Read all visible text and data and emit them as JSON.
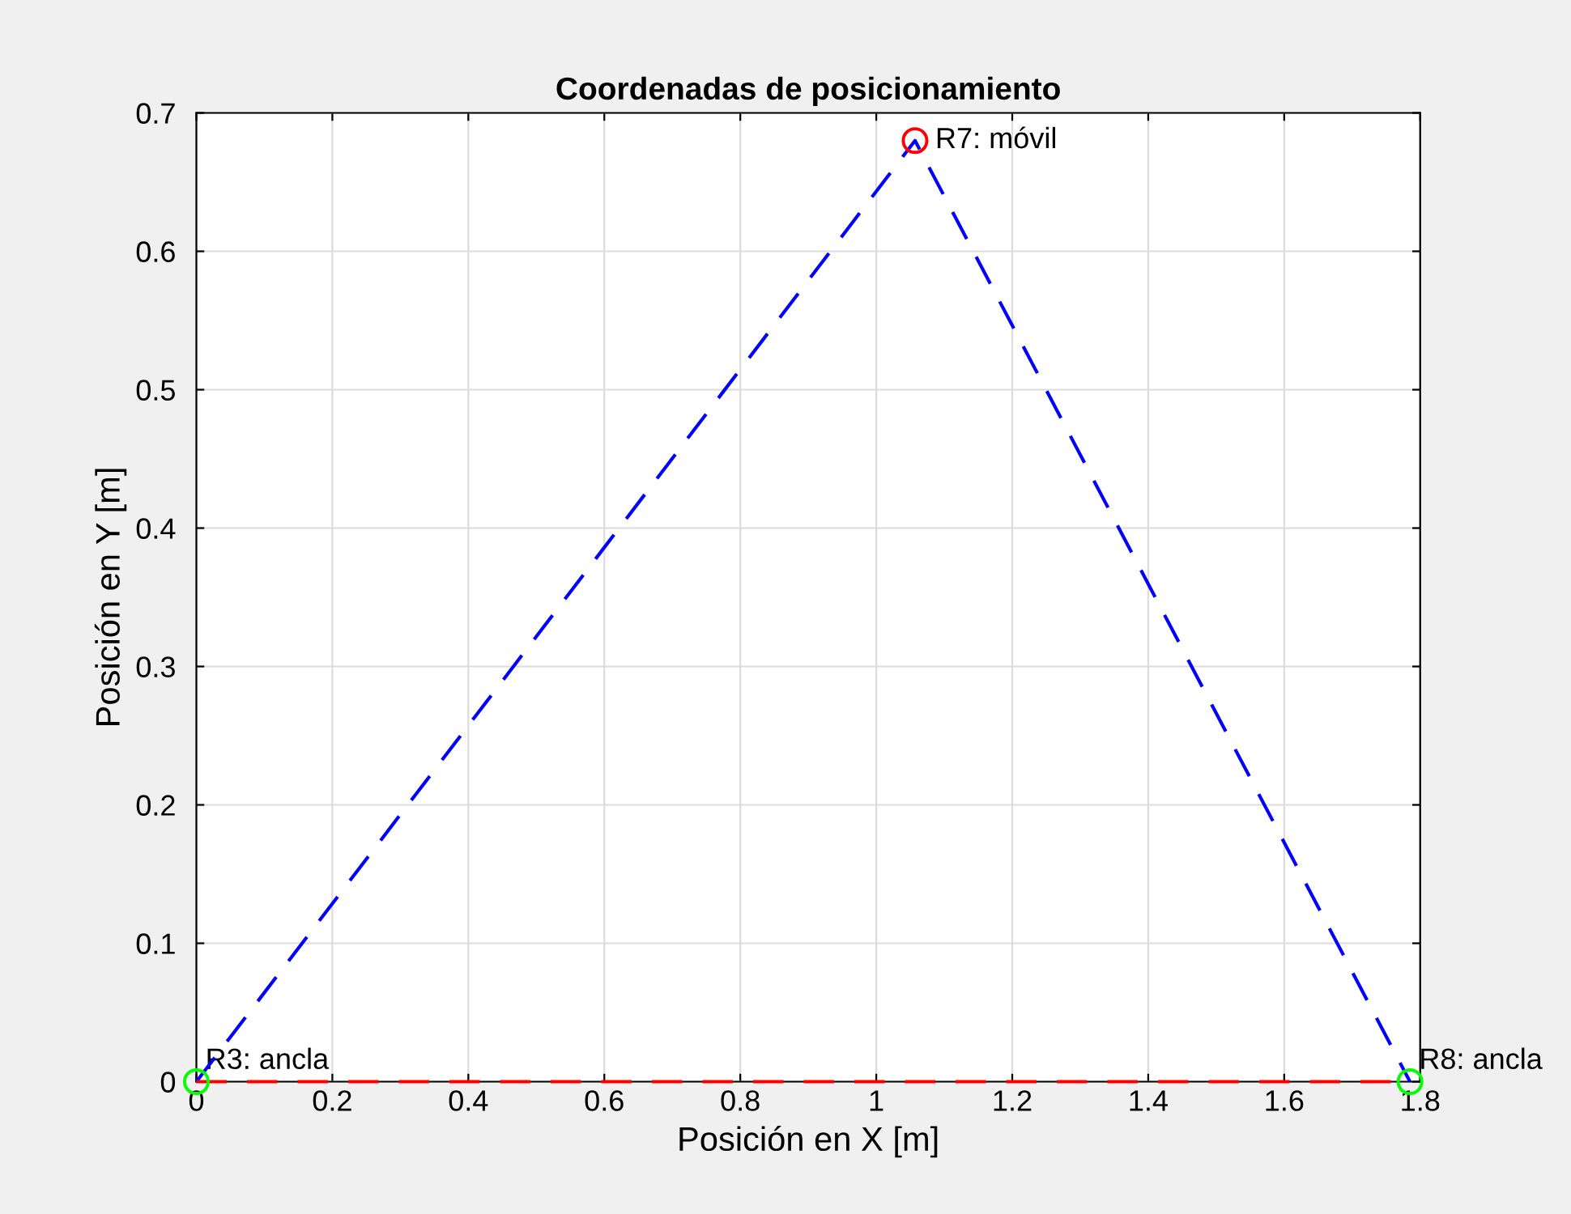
{
  "chart_data": {
    "type": "line",
    "title": "Coordenadas de posicionamiento",
    "xlabel": "Posición en X [m]",
    "ylabel": "Posición en Y [m]",
    "xlim": [
      0,
      1.8
    ],
    "ylim": [
      0,
      0.7
    ],
    "xticks": [
      0,
      0.2,
      0.4,
      0.6,
      0.8,
      1,
      1.2,
      1.4,
      1.6,
      1.8
    ],
    "yticks": [
      0,
      0.1,
      0.2,
      0.3,
      0.4,
      0.5,
      0.6,
      0.7
    ],
    "grid": true,
    "line_style": "dashed",
    "marker": "none",
    "series": [
      {
        "color": "#0000ff",
        "x": [
          0,
          1.057,
          1.785
        ],
        "values": [
          0,
          0.68,
          0
        ]
      },
      {
        "color": "#ff0000",
        "x": [
          0,
          1.785
        ],
        "values": [
          0,
          0
        ]
      },
      {
        "type": "scatter",
        "color": "#00ff00",
        "marker": "circle",
        "x": [
          0,
          1.785
        ],
        "values": [
          0,
          0
        ]
      },
      {
        "type": "scatter",
        "color": "#ff0000",
        "marker": "circle",
        "x": [
          1.057
        ],
        "values": [
          0.68
        ]
      }
    ],
    "annotations": [
      {
        "text": "R3: ancla",
        "x": 0,
        "y": 0
      },
      {
        "text": "R8: ancla",
        "x": 1.785,
        "y": 0
      },
      {
        "text": "R7: móvil",
        "x": 1.057,
        "y": 0.68
      }
    ]
  }
}
